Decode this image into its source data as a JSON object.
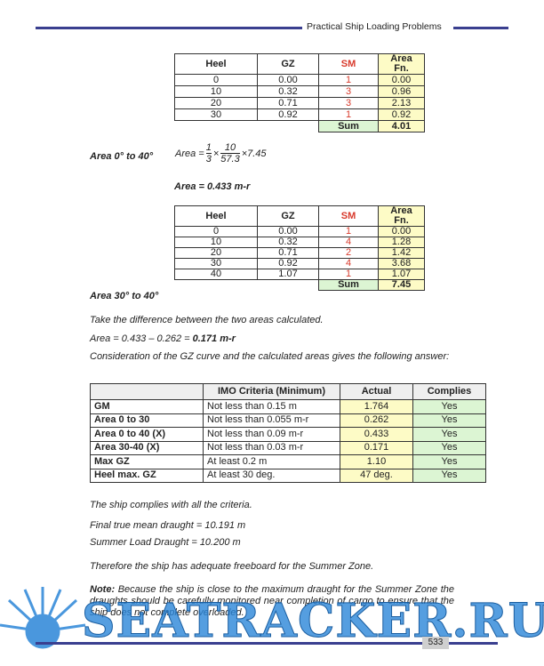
{
  "header": {
    "title": "Practical Ship Loading Problems"
  },
  "table1": {
    "columns": [
      "Heel",
      "GZ",
      "SM",
      "Area Fn."
    ],
    "rows": [
      [
        "0",
        "0.00",
        "1",
        "0.00"
      ],
      [
        "10",
        "0.32",
        "3",
        "0.96"
      ],
      [
        "20",
        "0.71",
        "3",
        "2.13"
      ],
      [
        "30",
        "0.92",
        "1",
        "0.92"
      ]
    ],
    "sum": [
      "Sum",
      "4.01"
    ]
  },
  "calc": {
    "label": "Area 0° to 40°",
    "lhs": "Area =",
    "f1_num": "1",
    "f1_den": "3",
    "times": "×",
    "f2_num": "10",
    "f2_den": "57.3",
    "tail": "×7.45",
    "result": "Area = 0.433 m-r"
  },
  "table2": {
    "columns": [
      "Heel",
      "GZ",
      "SM",
      "Area Fn."
    ],
    "rows": [
      [
        "0",
        "0.00",
        "1",
        "0.00"
      ],
      [
        "10",
        "0.32",
        "4",
        "1.28"
      ],
      [
        "20",
        "0.71",
        "2",
        "1.42"
      ],
      [
        "30",
        "0.92",
        "4",
        "3.68"
      ],
      [
        "40",
        "1.07",
        "1",
        "1.07"
      ]
    ],
    "sum": [
      "Sum",
      "7.45"
    ]
  },
  "section": "Area 30° to 40°",
  "diff_text": "Take the difference between the two areas calculated.",
  "diff_calc": "Area = 0.433 – 0.262 =",
  "diff_result": "0.171 m-r",
  "paragraph": "Consideration of the GZ curve and the calculated areas gives the following answer:",
  "criteria": {
    "columns": [
      "IMO Criteria (Minimum)",
      "Actual",
      "Complies"
    ],
    "rows": [
      [
        "GM",
        "Not less than 0.15 m",
        "1.764",
        "Yes"
      ],
      [
        "Area 0 to 30",
        "Not less than 0.055 m-r",
        "0.262",
        "Yes"
      ],
      [
        "Area 0 to 40 (X)",
        "Not less than 0.09 m-r",
        "0.433",
        "Yes"
      ],
      [
        "Area 30-40 (X)",
        "Not less than 0.03 m-r",
        "0.171",
        "Yes"
      ],
      [
        "Max GZ",
        "At least 0.2 m",
        "1.10",
        "Yes"
      ],
      [
        "Heel max. GZ",
        "At least 30 deg.",
        "47 deg.",
        "Yes"
      ]
    ]
  },
  "lines": [
    "The ship complies with all the criteria.",
    "Final true mean draught = 10.191 m",
    "Summer Load Draught = 10.200 m",
    "Therefore the ship has adequate freeboard for the Summer Zone."
  ],
  "note": {
    "label": "Note:",
    "text": "Because the ship is close to the maximum draught for the Summer Zone the draughts should be carefully monitored near completion of cargo to ensure that the ship does not complete overloaded."
  },
  "watermark": "SEATRACKER.RU",
  "page_number": "533"
}
